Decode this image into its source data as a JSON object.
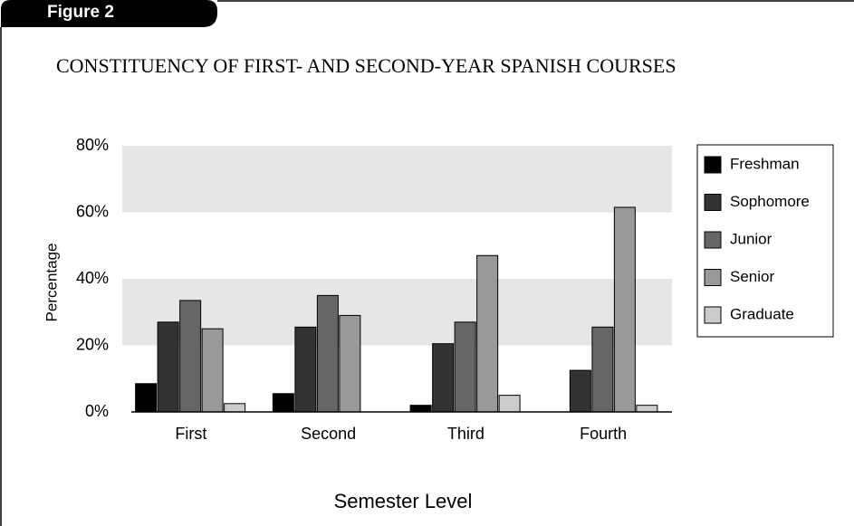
{
  "figure_label": "Figure 2",
  "chart_data": {
    "type": "bar",
    "title": "CONSTITUENCY OF FIRST- AND SECOND-YEAR SPANISH COURSES",
    "x_label": "Semester Level",
    "y_label": "Percentage",
    "categories": [
      "First",
      "Second",
      "Third",
      "Fourth"
    ],
    "series": [
      {
        "name": "Freshman",
        "color": "#000000",
        "values": [
          8.5,
          5.5,
          2,
          0
        ]
      },
      {
        "name": "Sophomore",
        "color": "#333333",
        "values": [
          27,
          25.5,
          20.5,
          12.5
        ]
      },
      {
        "name": "Junior",
        "color": "#666666",
        "values": [
          33.5,
          35,
          27,
          25.5
        ]
      },
      {
        "name": "Senior",
        "color": "#999999",
        "values": [
          25,
          29,
          47,
          61.5
        ]
      },
      {
        "name": "Graduate",
        "color": "#cccccc",
        "values": [
          2.5,
          0,
          5,
          2
        ]
      }
    ],
    "ylim": [
      0,
      80
    ],
    "yticks": [
      {
        "value": 0,
        "label": "0%"
      },
      {
        "value": 20,
        "label": "20%"
      },
      {
        "value": 40,
        "label": "40%"
      },
      {
        "value": 60,
        "label": "60%"
      },
      {
        "value": 80,
        "label": "80%"
      }
    ],
    "grid": "bands",
    "legend": "right"
  }
}
